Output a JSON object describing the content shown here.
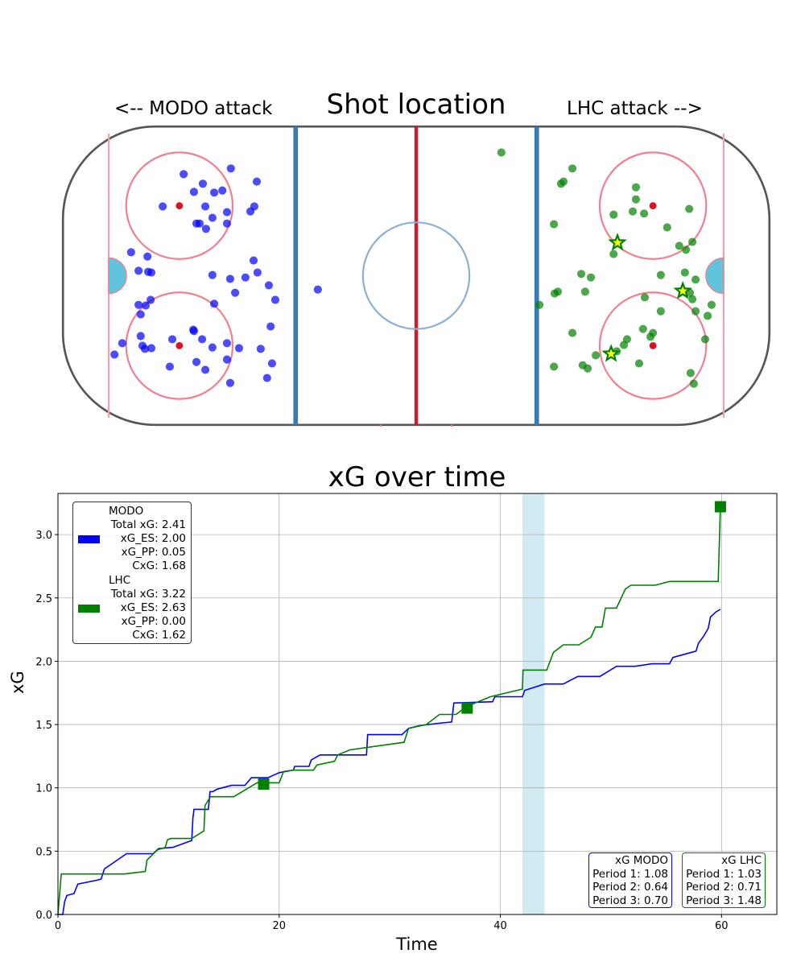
{
  "rink_title": "Shot location",
  "left_label": "<-- MODO attack",
  "right_label": "LHC attack -->",
  "colors": {
    "modo": "#0000ff",
    "lhc": "#008000",
    "shade": "#add8e6",
    "star": "#ffff00"
  },
  "shots": {
    "modo": [
      [
        -65.5,
        28.6
      ],
      [
        -60.1,
        25.9
      ],
      [
        -62.6,
        23.6
      ],
      [
        -56.9,
        23.4
      ],
      [
        -54.6,
        24.0
      ],
      [
        -52.2,
        30.2
      ],
      [
        -44.9,
        26.5
      ],
      [
        -71.4,
        19.5
      ],
      [
        -59.4,
        19.5
      ],
      [
        -45.6,
        19.5
      ],
      [
        -46.7,
        18.1
      ],
      [
        -53.3,
        17.9
      ],
      [
        -57.4,
        16.3
      ],
      [
        -61.9,
        14.7
      ],
      [
        -61.0,
        14.7
      ],
      [
        -59.2,
        13.2
      ],
      [
        -53.3,
        14.7
      ],
      [
        -80.3,
        6.6
      ],
      [
        -75.7,
        5.4
      ],
      [
        -78.2,
        1.4
      ],
      [
        -75.5,
        1.1
      ],
      [
        -74.6,
        0.9
      ],
      [
        -57.4,
        0.2
      ],
      [
        -52.4,
        -0.9
      ],
      [
        -48.1,
        -0.5
      ],
      [
        -45.8,
        4.3
      ],
      [
        -44.7,
        0.9
      ],
      [
        -41.5,
        -2.7
      ],
      [
        -51.0,
        -4.8
      ],
      [
        -39.7,
        -6.8
      ],
      [
        -27.7,
        -3.9
      ],
      [
        -74.8,
        -6.8
      ],
      [
        -78.2,
        -8.2
      ],
      [
        -76.2,
        -8.4
      ],
      [
        -56.9,
        -7.9
      ],
      [
        -77.6,
        -10.9
      ],
      [
        -41.0,
        -14.3
      ],
      [
        -62.8,
        -15.2
      ],
      [
        -62.6,
        -15.6
      ],
      [
        -77.6,
        -17.0
      ],
      [
        -68.7,
        -17.9
      ],
      [
        -60.3,
        -17.9
      ],
      [
        -82.8,
        -19.0
      ],
      [
        -77.1,
        -19.7
      ],
      [
        -76.4,
        -20.6
      ],
      [
        -74.6,
        -20.4
      ],
      [
        -57.4,
        -20.2
      ],
      [
        -53.3,
        -19.0
      ],
      [
        -49.9,
        -20.4
      ],
      [
        -43.8,
        -20.6
      ],
      [
        -85.0,
        -22.2
      ],
      [
        -61.9,
        -24.3
      ],
      [
        -53.3,
        -23.6
      ],
      [
        -40.6,
        -24.7
      ],
      [
        -69.4,
        -25.6
      ],
      [
        -59.4,
        -26.5
      ],
      [
        -42.0,
        -28.8
      ],
      [
        -52.4,
        -30.2
      ]
    ],
    "lhc": [
      [
        24.0,
        34.7
      ],
      [
        44.0,
        30.2
      ],
      [
        40.8,
        25.9
      ],
      [
        41.5,
        26.5
      ],
      [
        61.9,
        24.9
      ],
      [
        61.9,
        21.5
      ],
      [
        55.6,
        17.2
      ],
      [
        61.0,
        18.1
      ],
      [
        64.2,
        17.5
      ],
      [
        76.9,
        18.8
      ],
      [
        38.8,
        14.5
      ],
      [
        70.7,
        13.6
      ],
      [
        74.1,
        8.4
      ],
      [
        77.8,
        9.5
      ],
      [
        76.0,
        7.3
      ],
      [
        55.6,
        6.1
      ],
      [
        46.5,
        0.5
      ],
      [
        49.2,
        -0.5
      ],
      [
        68.9,
        0.2
      ],
      [
        75.7,
        0.9
      ],
      [
        78.7,
        -1.1
      ],
      [
        39.0,
        -5.0
      ],
      [
        39.9,
        -4.5
      ],
      [
        47.6,
        -4.5
      ],
      [
        34.7,
        -8.2
      ],
      [
        64.4,
        -6.1
      ],
      [
        77.1,
        -4.8
      ],
      [
        77.8,
        -6.6
      ],
      [
        68.9,
        -10.0
      ],
      [
        78.7,
        -10.0
      ],
      [
        83.2,
        -8.2
      ],
      [
        82.1,
        -11.3
      ],
      [
        44.0,
        -16.1
      ],
      [
        63.9,
        -15.0
      ],
      [
        66.7,
        -16.1
      ],
      [
        66.0,
        -17.2
      ],
      [
        59.4,
        -17.9
      ],
      [
        58.5,
        -19.5
      ],
      [
        56.5,
        -21.3
      ],
      [
        50.6,
        -22.4
      ],
      [
        81.4,
        -17.9
      ],
      [
        46.9,
        -25.2
      ],
      [
        48.3,
        -26.1
      ],
      [
        62.8,
        -24.7
      ],
      [
        38.8,
        -25.6
      ],
      [
        77.3,
        -27.4
      ],
      [
        78.2,
        -30.4
      ]
    ],
    "lhc_goals": [
      [
        56.7,
        9.3
      ],
      [
        75.1,
        -4.3
      ],
      [
        54.9,
        -22.0
      ]
    ]
  },
  "legend": {
    "modo": {
      "name": "MODO",
      "total": "Total xG: 2.41",
      "es": "xG_ES: 2.00",
      "pp": "xG_PP: 0.05",
      "cxg": "CxG: 1.68"
    },
    "lhc": {
      "name": "LHC",
      "total": "Total xG: 3.22",
      "es": "xG_ES: 2.63",
      "pp": "xG_PP: 0.00",
      "cxg": "CxG: 1.62"
    }
  },
  "periods": {
    "modo": {
      "title": "xG MODO",
      "p1": "Period 1: 1.08",
      "p2": "Period 2: 0.64",
      "p3": "Period 3: 0.70"
    },
    "lhc": {
      "title": "xG LHC",
      "p1": "Period 1: 1.03",
      "p2": "Period 2: 0.71",
      "p3": "Period 3: 1.48"
    }
  },
  "chart_data": {
    "type": "line",
    "title": "xG over time",
    "xlabel": "Time",
    "ylabel": "xG",
    "xlim": [
      0,
      65
    ],
    "ylim": [
      0,
      3.325
    ],
    "xticks": [
      0,
      20,
      40,
      60
    ],
    "yticks": [
      0.0,
      0.5,
      1.0,
      1.5,
      2.0,
      2.5,
      3.0
    ],
    "xtick_labels": [
      "0",
      "20",
      "40",
      "60"
    ],
    "ytick_labels": [
      "0.0",
      "0.5",
      "1.0",
      "1.5",
      "2.0",
      "2.5",
      "3.0"
    ],
    "grid": true,
    "shaded_region": [
      42,
      44
    ],
    "series": [
      {
        "name": "MODO",
        "color": "#0000ff",
        "points": [
          [
            0,
            0
          ],
          [
            0.44,
            0
          ],
          [
            0.6,
            0.1
          ],
          [
            0.8,
            0.15
          ],
          [
            1.45,
            0.165
          ],
          [
            1.8,
            0.24
          ],
          [
            3.5,
            0.27
          ],
          [
            3.9,
            0.28
          ],
          [
            4.2,
            0.36
          ],
          [
            6.2,
            0.48
          ],
          [
            8.6,
            0.48
          ],
          [
            9.1,
            0.52
          ],
          [
            10.4,
            0.53
          ],
          [
            12.1,
            0.585
          ],
          [
            12.2,
            0.76
          ],
          [
            12.3,
            0.83
          ],
          [
            13.6,
            0.83
          ],
          [
            13.75,
            0.97
          ],
          [
            14,
            0.97
          ],
          [
            14.4,
            0.99
          ],
          [
            15.7,
            1.02
          ],
          [
            16.9,
            1.02
          ],
          [
            17.5,
            1.08
          ],
          [
            19,
            1.08
          ],
          [
            20,
            1.12
          ],
          [
            21.3,
            1.14
          ],
          [
            21.4,
            1.17
          ],
          [
            22.7,
            1.17
          ],
          [
            22.9,
            1.22
          ],
          [
            23.7,
            1.26
          ],
          [
            27.9,
            1.26
          ],
          [
            28,
            1.42
          ],
          [
            31.1,
            1.42
          ],
          [
            31.7,
            1.47
          ],
          [
            32.6,
            1.49
          ],
          [
            34.4,
            1.51
          ],
          [
            35.6,
            1.52
          ],
          [
            35.8,
            1.67
          ],
          [
            39.3,
            1.68
          ],
          [
            39.5,
            1.72
          ],
          [
            42,
            1.72
          ],
          [
            42.2,
            1.77
          ],
          [
            44,
            1.82
          ],
          [
            45.7,
            1.82
          ],
          [
            47,
            1.88
          ],
          [
            49,
            1.88
          ],
          [
            50.5,
            1.96
          ],
          [
            52.2,
            1.96
          ],
          [
            53.7,
            1.98
          ],
          [
            55.3,
            1.98
          ],
          [
            55.6,
            2.03
          ],
          [
            57.7,
            2.08
          ],
          [
            57.9,
            2.14
          ],
          [
            58.4,
            2.2
          ],
          [
            58.8,
            2.26
          ],
          [
            59,
            2.35
          ],
          [
            59.5,
            2.39
          ],
          [
            59.9,
            2.41
          ]
        ]
      },
      {
        "name": "LHC",
        "color": "#008000",
        "points": [
          [
            0,
            0
          ],
          [
            0.3,
            0.32
          ],
          [
            6,
            0.32
          ],
          [
            7.9,
            0.34
          ],
          [
            8.05,
            0.43
          ],
          [
            9,
            0.51
          ],
          [
            9.7,
            0.53
          ],
          [
            9.9,
            0.59
          ],
          [
            10.2,
            0.6
          ],
          [
            12.1,
            0.6
          ],
          [
            13.2,
            0.66
          ],
          [
            13.3,
            0.86
          ],
          [
            13.5,
            0.89
          ],
          [
            13.8,
            0.93
          ],
          [
            15.9,
            0.93
          ],
          [
            18,
            1.04
          ],
          [
            20,
            1.04
          ],
          [
            20.4,
            1.13
          ],
          [
            21.3,
            1.14
          ],
          [
            23.1,
            1.14
          ],
          [
            23.4,
            1.18
          ],
          [
            25,
            1.21
          ],
          [
            25.3,
            1.26
          ],
          [
            26.4,
            1.3
          ],
          [
            31.3,
            1.36
          ],
          [
            31.7,
            1.47
          ],
          [
            33.3,
            1.5
          ],
          [
            34.5,
            1.58
          ],
          [
            36,
            1.58
          ],
          [
            36.9,
            1.64
          ],
          [
            39.1,
            1.72
          ],
          [
            42,
            1.78
          ],
          [
            42.05,
            1.93
          ],
          [
            44.2,
            1.93
          ],
          [
            44.8,
            2.07
          ],
          [
            45.7,
            2.13
          ],
          [
            47.1,
            2.13
          ],
          [
            48.2,
            2.19
          ],
          [
            48.6,
            2.27
          ],
          [
            49.2,
            2.27
          ],
          [
            49.5,
            2.42
          ],
          [
            50.5,
            2.42
          ],
          [
            51.3,
            2.57
          ],
          [
            51.8,
            2.6
          ],
          [
            54,
            2.6
          ],
          [
            55.3,
            2.63
          ],
          [
            59.7,
            2.63
          ],
          [
            59.9,
            3.22
          ]
        ]
      }
    ],
    "goal_markers": {
      "series": "LHC",
      "points": [
        [
          18.6,
          1.03
        ],
        [
          37.0,
          1.63
        ],
        [
          59.9,
          3.22
        ]
      ]
    }
  }
}
